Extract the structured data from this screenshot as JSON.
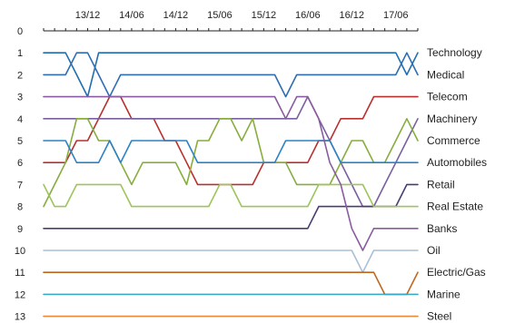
{
  "chart_data": {
    "type": "line",
    "ylim": [
      0,
      13
    ],
    "y_inverted": true,
    "y_ticks": [
      "0",
      "1",
      "2",
      "3",
      "4",
      "5",
      "6",
      "7",
      "8",
      "9",
      "10",
      "11",
      "12",
      "13"
    ],
    "x_range": [
      0,
      34
    ],
    "x_tick_labels": [
      {
        "label": "13/12",
        "x": 4
      },
      {
        "label": "14/06",
        "x": 8
      },
      {
        "label": "14/12",
        "x": 12
      },
      {
        "label": "15/06",
        "x": 16
      },
      {
        "label": "15/12",
        "x": 20
      },
      {
        "label": "16/06",
        "x": 24
      },
      {
        "label": "16/12",
        "x": 28
      },
      {
        "label": "17/06",
        "x": 32
      }
    ],
    "grid": false,
    "legend": "right",
    "series": [
      {
        "name": "Technology",
        "color": "#1f6fb0",
        "values": [
          1,
          1,
          1,
          2,
          3,
          1,
          1,
          1,
          1,
          1,
          1,
          1,
          1,
          1,
          1,
          1,
          1,
          1,
          1,
          1,
          1,
          1,
          1,
          1,
          1,
          1,
          1,
          1,
          1,
          1,
          1,
          1,
          1,
          2,
          1
        ]
      },
      {
        "name": "Medical",
        "color": "#2e6db4",
        "values": [
          2,
          2,
          2,
          1,
          1,
          2,
          3,
          2,
          2,
          2,
          2,
          2,
          2,
          2,
          2,
          2,
          2,
          2,
          2,
          2,
          2,
          2,
          3,
          2,
          2,
          2,
          2,
          2,
          2,
          2,
          2,
          2,
          2,
          1,
          2
        ]
      },
      {
        "name": "Telecom",
        "color": "#b8302f",
        "values": [
          6,
          6,
          6,
          5,
          5,
          4,
          3,
          3,
          4,
          4,
          4,
          5,
          5,
          6,
          7,
          7,
          7,
          7,
          7,
          7,
          6,
          6,
          6,
          6,
          6,
          5,
          5,
          4,
          4,
          4,
          3,
          3,
          3,
          3,
          3
        ]
      },
      {
        "name": "Machinery",
        "color": "#7a5fa0",
        "values": [
          4,
          4,
          4,
          4,
          4,
          4,
          4,
          4,
          4,
          4,
          4,
          4,
          4,
          4,
          4,
          4,
          4,
          4,
          4,
          4,
          4,
          4,
          4,
          4,
          3,
          4,
          5,
          6,
          7,
          8,
          8,
          7,
          6,
          5,
          4
        ]
      },
      {
        "name": "Commerce",
        "color": "#86ad3d",
        "values": [
          8,
          7,
          6,
          4,
          4,
          5,
          5,
          6,
          7,
          6,
          6,
          6,
          6,
          7,
          5,
          5,
          4,
          4,
          5,
          4,
          6,
          6,
          6,
          7,
          7,
          7,
          7,
          6,
          5,
          5,
          6,
          6,
          5,
          4,
          5
        ]
      },
      {
        "name": "Automobiles",
        "color": "#2b82c4",
        "values": [
          5,
          5,
          5,
          6,
          6,
          6,
          5,
          6,
          5,
          5,
          5,
          5,
          5,
          5,
          6,
          6,
          6,
          6,
          6,
          6,
          6,
          6,
          5,
          5,
          5,
          5,
          5,
          6,
          6,
          6,
          6,
          6,
          6,
          6,
          6
        ]
      },
      {
        "name": "Retail",
        "color": "#4a3c70",
        "values": [
          9,
          9,
          9,
          9,
          9,
          9,
          9,
          9,
          9,
          9,
          9,
          9,
          9,
          9,
          9,
          9,
          9,
          9,
          9,
          9,
          9,
          9,
          9,
          9,
          9,
          8,
          8,
          8,
          8,
          8,
          8,
          8,
          8,
          7,
          7
        ]
      },
      {
        "name": "Real Estate",
        "color": "#9dc55a",
        "values": [
          7,
          8,
          8,
          7,
          7,
          7,
          7,
          7,
          8,
          8,
          8,
          8,
          8,
          8,
          8,
          8,
          7,
          7,
          8,
          8,
          8,
          8,
          8,
          8,
          8,
          7,
          7,
          7,
          7,
          7,
          8,
          8,
          8,
          8,
          8
        ]
      },
      {
        "name": "Banks",
        "color": "#8a5ba0",
        "values": [
          3,
          3,
          3,
          3,
          3,
          3,
          3,
          3,
          3,
          3,
          3,
          3,
          3,
          3,
          3,
          3,
          3,
          3,
          3,
          3,
          3,
          3,
          4,
          3,
          3,
          4,
          6,
          7,
          9,
          10,
          9,
          9,
          9,
          9,
          9
        ]
      },
      {
        "name": "Oil",
        "color": "#a9bfd6",
        "values": [
          10,
          10,
          10,
          10,
          10,
          10,
          10,
          10,
          10,
          10,
          10,
          10,
          10,
          10,
          10,
          10,
          10,
          10,
          10,
          10,
          10,
          10,
          10,
          10,
          10,
          10,
          10,
          10,
          10,
          11,
          10,
          10,
          10,
          10,
          10
        ]
      },
      {
        "name": "Electric/Gas",
        "color": "#c0661d",
        "values": [
          11,
          11,
          11,
          11,
          11,
          11,
          11,
          11,
          11,
          11,
          11,
          11,
          11,
          11,
          11,
          11,
          11,
          11,
          11,
          11,
          11,
          11,
          11,
          11,
          11,
          11,
          11,
          11,
          11,
          11,
          11,
          12,
          12,
          12,
          11
        ]
      },
      {
        "name": "Marine",
        "color": "#3aa7c4",
        "values": [
          12,
          12,
          12,
          12,
          12,
          12,
          12,
          12,
          12,
          12,
          12,
          12,
          12,
          12,
          12,
          12,
          12,
          12,
          12,
          12,
          12,
          12,
          12,
          12,
          12,
          12,
          12,
          12,
          12,
          12,
          12,
          12,
          12,
          12,
          12
        ]
      },
      {
        "name": "Steel",
        "color": "#e8893a",
        "values": [
          13,
          13,
          13,
          13,
          13,
          13,
          13,
          13,
          13,
          13,
          13,
          13,
          13,
          13,
          13,
          13,
          13,
          13,
          13,
          13,
          13,
          13,
          13,
          13,
          13,
          13,
          13,
          13,
          13,
          13,
          13,
          13,
          13,
          13,
          13
        ]
      }
    ]
  }
}
